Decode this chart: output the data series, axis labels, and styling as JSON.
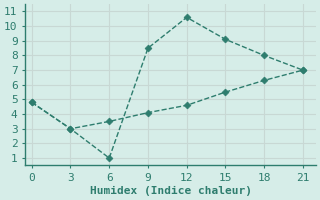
{
  "line1_x": [
    0,
    3,
    6,
    9,
    12,
    15,
    18,
    21
  ],
  "line1_y": [
    4.8,
    3.0,
    1.0,
    8.5,
    10.6,
    9.1,
    8.0,
    7.0
  ],
  "line2_x": [
    0,
    3,
    6,
    9,
    12,
    15,
    18,
    21
  ],
  "line2_y": [
    4.8,
    3.0,
    3.5,
    4.1,
    4.6,
    5.5,
    6.3,
    7.0
  ],
  "color": "#2e7d6e",
  "xlabel": "Humidex (Indice chaleur)",
  "xlim": [
    -0.5,
    22
  ],
  "ylim": [
    0.5,
    11.5
  ],
  "xticks": [
    0,
    3,
    6,
    9,
    12,
    15,
    18,
    21
  ],
  "yticks": [
    1,
    2,
    3,
    4,
    5,
    6,
    7,
    8,
    9,
    10,
    11
  ],
  "bg_color": "#d6ede8",
  "grid_color": "#c8d8d4",
  "spine_color": "#2e7d6e",
  "font_size": 8,
  "marker_size": 3.5,
  "line_width": 1.0
}
